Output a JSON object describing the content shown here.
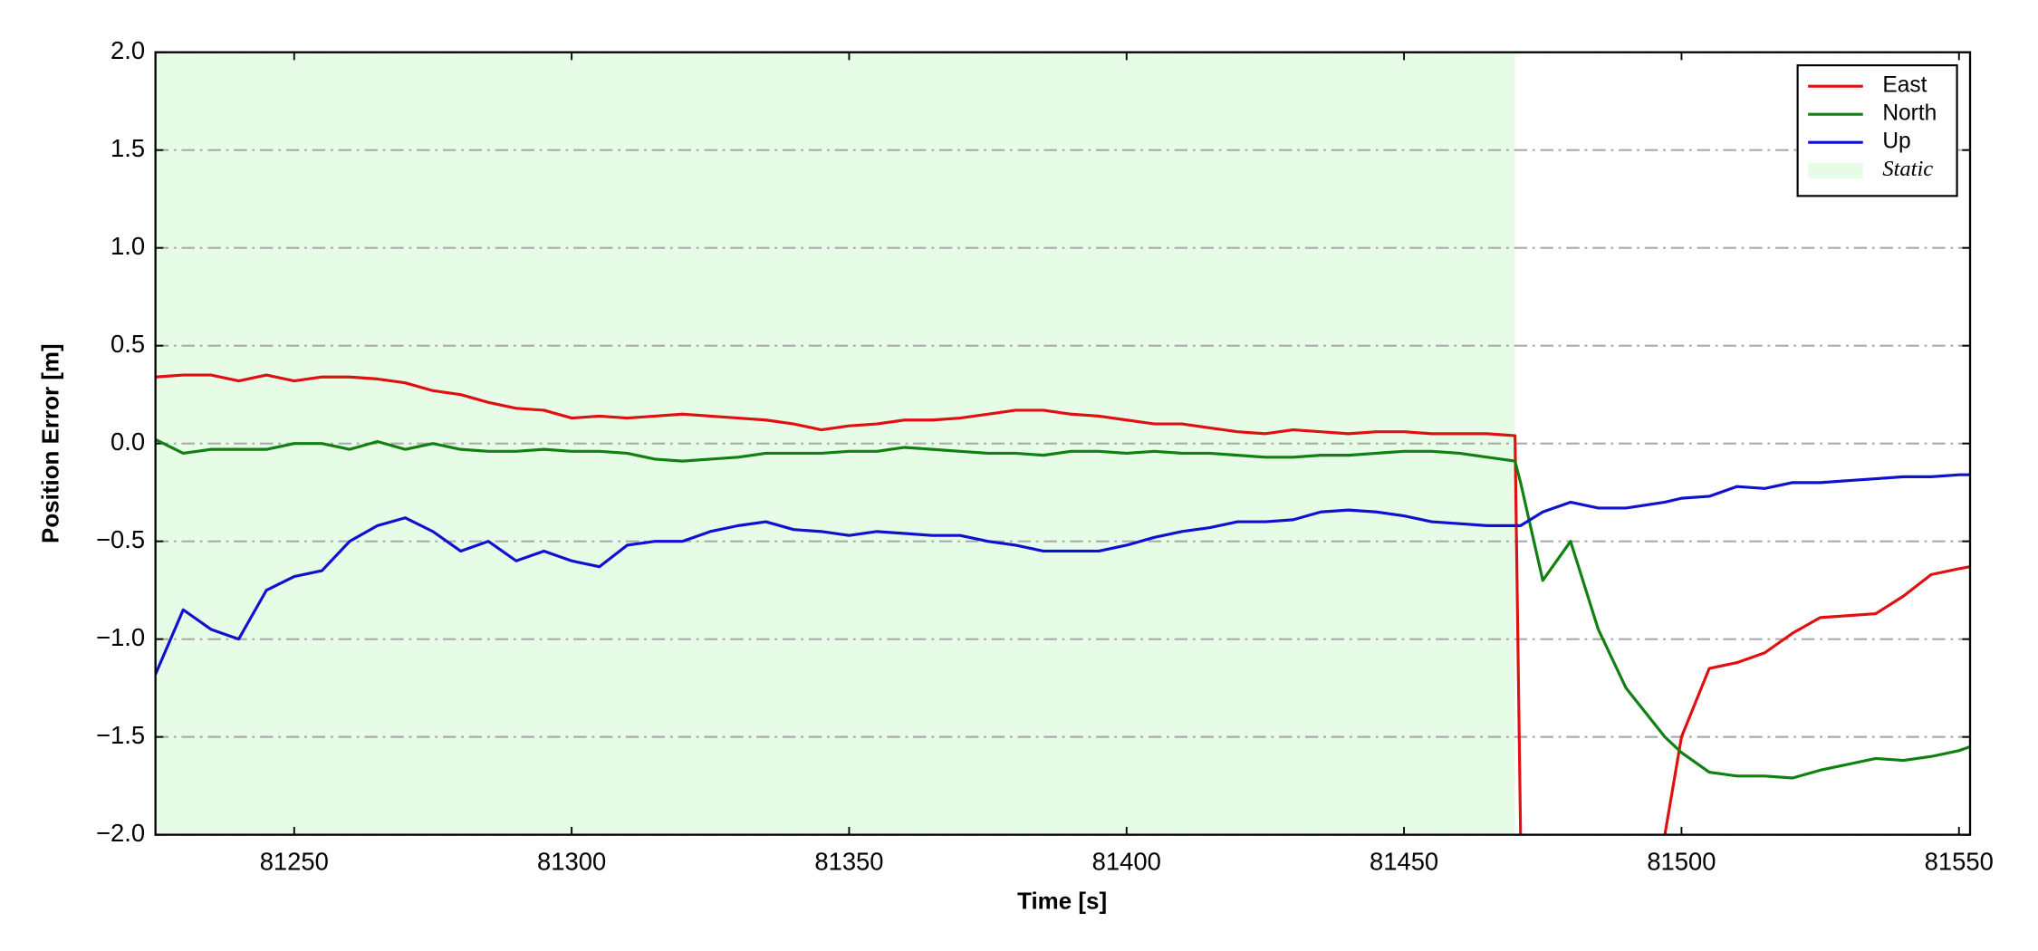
{
  "chart_data": {
    "type": "line",
    "xlabel": "Time [s]",
    "ylabel": "Position Error [m]",
    "xlim": [
      81225,
      81552
    ],
    "ylim": [
      -2,
      2
    ],
    "xticks": [
      81250,
      81300,
      81350,
      81400,
      81450,
      81500,
      81550
    ],
    "yticks": [
      {
        "value": -2,
        "label": "−2.0"
      },
      {
        "value": -1.5,
        "label": "−1.5"
      },
      {
        "value": -1,
        "label": "−1.0"
      },
      {
        "value": -0.5,
        "label": "−0.5"
      },
      {
        "value": 0,
        "label": "0.0"
      },
      {
        "value": 0.5,
        "label": "0.5"
      },
      {
        "value": 1,
        "label": "1.0"
      },
      {
        "value": 1.5,
        "label": "1.5"
      },
      {
        "value": 2,
        "label": "2.0"
      }
    ],
    "grid": true,
    "legend": "upper right",
    "spans": [
      {
        "name": "Static",
        "start": 81225,
        "end": 81470,
        "color": "#e6fce6"
      }
    ],
    "x": [
      81225,
      81230,
      81235,
      81240,
      81245,
      81250,
      81255,
      81260,
      81265,
      81270,
      81275,
      81280,
      81285,
      81290,
      81295,
      81300,
      81305,
      81310,
      81315,
      81320,
      81325,
      81330,
      81335,
      81340,
      81345,
      81350,
      81355,
      81360,
      81365,
      81370,
      81375,
      81380,
      81385,
      81390,
      81395,
      81400,
      81405,
      81410,
      81415,
      81420,
      81425,
      81430,
      81435,
      81440,
      81445,
      81450,
      81455,
      81460,
      81465,
      81470,
      81471,
      81475,
      81480,
      81485,
      81490,
      81497,
      81500,
      81505,
      81510,
      81515,
      81520,
      81525,
      81530,
      81535,
      81540,
      81545,
      81550,
      81552
    ],
    "series": [
      {
        "name": "East",
        "color": "#e01010",
        "values": [
          0.34,
          0.35,
          0.35,
          0.32,
          0.35,
          0.32,
          0.34,
          0.34,
          0.33,
          0.31,
          0.27,
          0.25,
          0.21,
          0.18,
          0.17,
          0.13,
          0.14,
          0.13,
          0.14,
          0.15,
          0.14,
          0.13,
          0.12,
          0.1,
          0.07,
          0.09,
          0.1,
          0.12,
          0.12,
          0.13,
          0.15,
          0.17,
          0.17,
          0.15,
          0.14,
          0.12,
          0.1,
          0.1,
          0.08,
          0.06,
          0.05,
          0.07,
          0.06,
          0.05,
          0.06,
          0.06,
          0.05,
          0.05,
          0.05,
          0.04,
          -2.0,
          null,
          null,
          null,
          null,
          -2.0,
          -1.5,
          -1.15,
          -1.12,
          -1.07,
          -0.97,
          -0.89,
          -0.88,
          -0.87,
          -0.78,
          -0.67,
          -0.64,
          -0.63
        ]
      },
      {
        "name": "North",
        "color": "#108010",
        "values": [
          0.02,
          -0.05,
          -0.03,
          -0.03,
          -0.03,
          0.0,
          0.0,
          -0.03,
          0.01,
          -0.03,
          0.0,
          -0.03,
          -0.04,
          -0.04,
          -0.03,
          -0.04,
          -0.04,
          -0.05,
          -0.08,
          -0.09,
          -0.08,
          -0.07,
          -0.05,
          -0.05,
          -0.05,
          -0.04,
          -0.04,
          -0.02,
          -0.03,
          -0.04,
          -0.05,
          -0.05,
          -0.06,
          -0.04,
          -0.04,
          -0.05,
          -0.04,
          -0.05,
          -0.05,
          -0.06,
          -0.07,
          -0.07,
          -0.06,
          -0.06,
          -0.05,
          -0.04,
          -0.04,
          -0.05,
          -0.07,
          -0.09,
          -0.2,
          -0.7,
          -0.5,
          -0.95,
          -1.25,
          -1.5,
          -1.58,
          -1.68,
          -1.7,
          -1.7,
          -1.71,
          -1.67,
          -1.64,
          -1.61,
          -1.62,
          -1.6,
          -1.57,
          -1.55
        ]
      },
      {
        "name": "Up",
        "color": "#1010d0",
        "values": [
          -1.18,
          -0.85,
          -0.95,
          -1.0,
          -0.75,
          -0.68,
          -0.65,
          -0.5,
          -0.42,
          -0.38,
          -0.45,
          -0.55,
          -0.5,
          -0.6,
          -0.55,
          -0.6,
          -0.63,
          -0.52,
          -0.5,
          -0.5,
          -0.45,
          -0.42,
          -0.4,
          -0.44,
          -0.45,
          -0.47,
          -0.45,
          -0.46,
          -0.47,
          -0.47,
          -0.5,
          -0.52,
          -0.55,
          -0.55,
          -0.55,
          -0.52,
          -0.48,
          -0.45,
          -0.43,
          -0.4,
          -0.4,
          -0.39,
          -0.35,
          -0.34,
          -0.35,
          -0.37,
          -0.4,
          -0.41,
          -0.42,
          -0.42,
          -0.42,
          -0.35,
          -0.3,
          -0.33,
          -0.33,
          -0.3,
          -0.28,
          -0.27,
          -0.22,
          -0.23,
          -0.2,
          -0.2,
          -0.19,
          -0.18,
          -0.17,
          -0.17,
          -0.16,
          -0.16
        ]
      }
    ]
  }
}
